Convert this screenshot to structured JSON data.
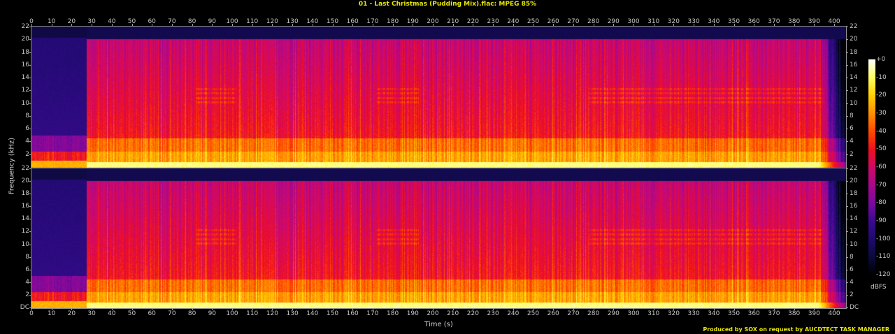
{
  "chart_data": {
    "type": "heatmap",
    "title": "01 - Last Christmas (Pudding Mix).flac: MPEG 85%",
    "xlabel": "Time (s)",
    "ylabel": "Frequency (kHz)",
    "xlim": [
      0,
      406
    ],
    "x_ticks": [
      "0",
      "10",
      "20",
      "30",
      "40",
      "50",
      "60",
      "70",
      "80",
      "90",
      "100",
      "110",
      "120",
      "130",
      "140",
      "150",
      "160",
      "170",
      "180",
      "190",
      "200",
      "210",
      "220",
      "230",
      "240",
      "250",
      "260",
      "270",
      "280",
      "290",
      "300",
      "310",
      "320",
      "330",
      "340",
      "350",
      "360",
      "370",
      "380",
      "390",
      "400"
    ],
    "ylim": [
      0,
      22
    ],
    "y_ticks": [
      "DC",
      "2",
      "4",
      "6",
      "8",
      "10",
      "12",
      "14",
      "16",
      "18",
      "20",
      "22"
    ],
    "channels": 2,
    "lowpass_cutoff_khz": 20,
    "colorbar": {
      "label": "dBFS",
      "range": [
        -120,
        0
      ],
      "ticks": [
        "+0",
        "-10",
        "-20",
        "-30",
        "-40",
        "-50",
        "-60",
        "-70",
        "-80",
        "-90",
        "-100",
        "-110",
        "-120"
      ],
      "colors": [
        "#000000",
        "#0b0a3a",
        "#1e0a6e",
        "#3a0a8f",
        "#7a0a9e",
        "#a8088e",
        "#d0086a",
        "#f01020",
        "#ff4a00",
        "#ff9000",
        "#ffd000",
        "#ffff60",
        "#ffffff"
      ]
    }
  },
  "footer": "Produced by SOX on request by AUCDTECT TASK MANAGER"
}
